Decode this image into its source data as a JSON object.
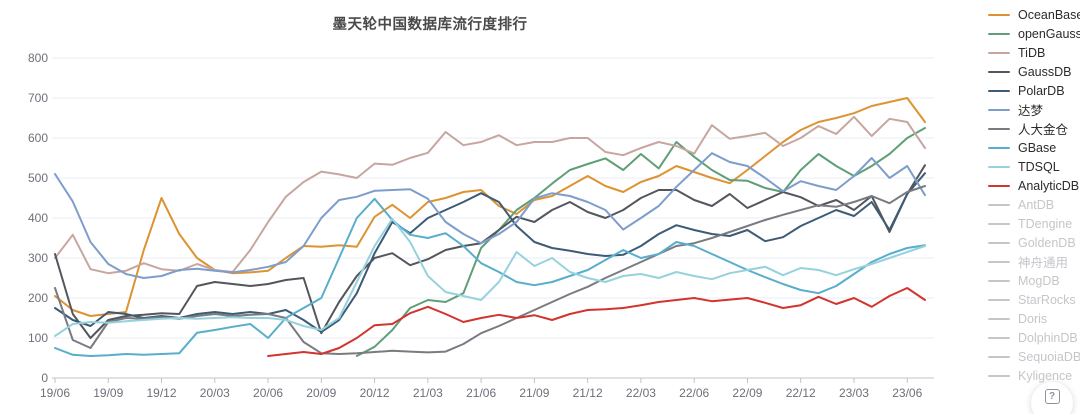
{
  "title": "墨天轮中国数据库流行度排行",
  "help_button": {
    "label": "?"
  },
  "chart_data": {
    "type": "line",
    "title": "墨天轮中国数据库流行度排行",
    "x_months": 50,
    "x_labels": [
      "19/06",
      "19/09",
      "19/12",
      "20/03",
      "20/06",
      "20/09",
      "20/12",
      "21/03",
      "21/06",
      "21/09",
      "21/12",
      "22/03",
      "22/06",
      "22/09",
      "22/12",
      "23/03",
      "23/06"
    ],
    "y_ticks": [
      0,
      100,
      200,
      300,
      400,
      500,
      600,
      700,
      800
    ],
    "ylim": [
      0,
      800
    ],
    "grid": true,
    "legend_position": "right",
    "colors": {
      "grid": "#E8EDF5",
      "axis": "#BFC3CA",
      "tick_text": "#6E7079",
      "title_text": "#494949",
      "legend_text": "#2b2b2b",
      "legend_disabled": "#C4C6CA"
    },
    "series": [
      {
        "name": "OceanBase",
        "color": "#DD9332",
        "enabled": true,
        "values": [
          205,
          170,
          155,
          160,
          165,
          320,
          450,
          360,
          300,
          270,
          262,
          264,
          268,
          300,
          330,
          328,
          332,
          328,
          403,
          433,
          400,
          440,
          450,
          465,
          470,
          430,
          410,
          445,
          455,
          480,
          505,
          480,
          465,
          490,
          505,
          530,
          515,
          500,
          487,
          520,
          555,
          590,
          620,
          640,
          650,
          662,
          680,
          690,
          700,
          640
        ]
      },
      {
        "name": "openGauss",
        "color": "#5F9E77",
        "enabled": true,
        "values": [
          null,
          null,
          null,
          null,
          null,
          null,
          null,
          null,
          null,
          null,
          null,
          null,
          null,
          null,
          null,
          null,
          null,
          55,
          78,
          120,
          175,
          195,
          190,
          212,
          325,
          370,
          420,
          450,
          486,
          520,
          535,
          549,
          520,
          560,
          524,
          590,
          553,
          520,
          495,
          493,
          475,
          465,
          520,
          560,
          530,
          505,
          530,
          560,
          600,
          625
        ]
      },
      {
        "name": "TiDB",
        "color": "#C7A6A0",
        "enabled": true,
        "values": [
          300,
          358,
          272,
          262,
          268,
          287,
          272,
          268,
          285,
          270,
          265,
          320,
          390,
          453,
          490,
          516,
          509,
          500,
          536,
          533,
          550,
          563,
          615,
          582,
          590,
          607,
          582,
          590,
          590,
          600,
          600,
          565,
          557,
          575,
          590,
          580,
          561,
          632,
          598,
          605,
          613,
          580,
          600,
          630,
          610,
          653,
          605,
          648,
          640,
          575
        ]
      },
      {
        "name": "GaussDB",
        "color": "#53565C",
        "enabled": true,
        "values": [
          310,
          160,
          100,
          145,
          155,
          158,
          162,
          160,
          230,
          240,
          235,
          230,
          235,
          245,
          250,
          112,
          190,
          255,
          300,
          312,
          282,
          297,
          320,
          330,
          337,
          370,
          403,
          390,
          420,
          440,
          415,
          400,
          420,
          450,
          470,
          470,
          445,
          430,
          460,
          425,
          445,
          465,
          452,
          430,
          445,
          420,
          455,
          365,
          460,
          532
        ]
      },
      {
        "name": "PolarDB",
        "color": "#3E5B76",
        "enabled": true,
        "values": [
          175,
          145,
          130,
          165,
          160,
          150,
          155,
          150,
          160,
          165,
          160,
          165,
          160,
          170,
          145,
          115,
          145,
          212,
          312,
          390,
          362,
          400,
          420,
          440,
          462,
          440,
          380,
          340,
          325,
          318,
          310,
          305,
          308,
          330,
          360,
          382,
          370,
          360,
          355,
          370,
          342,
          352,
          380,
          400,
          420,
          405,
          440,
          370,
          460,
          512
        ]
      },
      {
        "name": "达梦",
        "color": "#7D9DCB",
        "enabled": true,
        "values": [
          510,
          441,
          340,
          285,
          260,
          250,
          255,
          270,
          273,
          268,
          264,
          270,
          278,
          290,
          330,
          400,
          445,
          453,
          468,
          470,
          472,
          448,
          390,
          360,
          337,
          360,
          390,
          449,
          462,
          455,
          440,
          420,
          371,
          400,
          430,
          478,
          520,
          562,
          540,
          530,
          500,
          467,
          492,
          480,
          470,
          505,
          550,
          500,
          530,
          457
        ]
      },
      {
        "name": "人大金仓",
        "color": "#797B80",
        "enabled": true,
        "values": [
          225,
          95,
          75,
          140,
          150,
          148,
          152,
          148,
          155,
          160,
          155,
          158,
          160,
          150,
          90,
          62,
          60,
          62,
          65,
          68,
          66,
          64,
          66,
          85,
          112,
          130,
          150,
          170,
          190,
          210,
          228,
          250,
          270,
          290,
          310,
          330,
          337,
          350,
          365,
          380,
          395,
          408,
          420,
          432,
          428,
          440,
          455,
          437,
          465,
          480
        ]
      },
      {
        "name": "GBase",
        "color": "#58AECB",
        "enabled": true,
        "values": [
          75,
          58,
          55,
          57,
          60,
          58,
          60,
          62,
          113,
          120,
          128,
          135,
          100,
          150,
          175,
          200,
          300,
          400,
          448,
          395,
          358,
          350,
          362,
          330,
          287,
          265,
          240,
          232,
          240,
          255,
          270,
          295,
          320,
          300,
          310,
          340,
          330,
          310,
          290,
          270,
          252,
          235,
          220,
          212,
          230,
          260,
          290,
          310,
          325,
          332
        ]
      },
      {
        "name": "TDSQL",
        "color": "#97D2DC",
        "enabled": true,
        "values": [
          105,
          135,
          140,
          138,
          142,
          145,
          148,
          150,
          148,
          150,
          152,
          150,
          150,
          145,
          130,
          120,
          150,
          240,
          330,
          398,
          340,
          255,
          215,
          205,
          195,
          240,
          315,
          280,
          300,
          265,
          250,
          240,
          255,
          260,
          250,
          265,
          255,
          247,
          262,
          270,
          278,
          257,
          275,
          270,
          257,
          272,
          285,
          300,
          315,
          330
        ]
      },
      {
        "name": "AnalyticDB",
        "color": "#D2342E",
        "enabled": true,
        "values": [
          null,
          null,
          null,
          null,
          null,
          null,
          null,
          null,
          null,
          null,
          null,
          null,
          55,
          60,
          65,
          60,
          75,
          100,
          132,
          135,
          162,
          178,
          160,
          140,
          150,
          158,
          150,
          157,
          145,
          160,
          170,
          172,
          175,
          182,
          190,
          195,
          200,
          192,
          196,
          200,
          188,
          175,
          182,
          203,
          185,
          200,
          178,
          205,
          225,
          195
        ]
      },
      {
        "name": "AntDB",
        "color": "#C4C6CA",
        "enabled": false,
        "values": null
      },
      {
        "name": "TDengine",
        "color": "#C4C6CA",
        "enabled": false,
        "values": null
      },
      {
        "name": "GoldenDB",
        "color": "#C4C6CA",
        "enabled": false,
        "values": null
      },
      {
        "name": "神舟通用",
        "color": "#C4C6CA",
        "enabled": false,
        "values": null
      },
      {
        "name": "MogDB",
        "color": "#C4C6CA",
        "enabled": false,
        "values": null
      },
      {
        "name": "StarRocks",
        "color": "#C4C6CA",
        "enabled": false,
        "values": null
      },
      {
        "name": "Doris",
        "color": "#C4C6CA",
        "enabled": false,
        "values": null
      },
      {
        "name": "DolphinDB",
        "color": "#C4C6CA",
        "enabled": false,
        "values": null
      },
      {
        "name": "SequoiaDB",
        "color": "#C4C6CA",
        "enabled": false,
        "values": null
      },
      {
        "name": "Kyligence",
        "color": "#C4C6CA",
        "enabled": false,
        "values": null
      }
    ]
  }
}
